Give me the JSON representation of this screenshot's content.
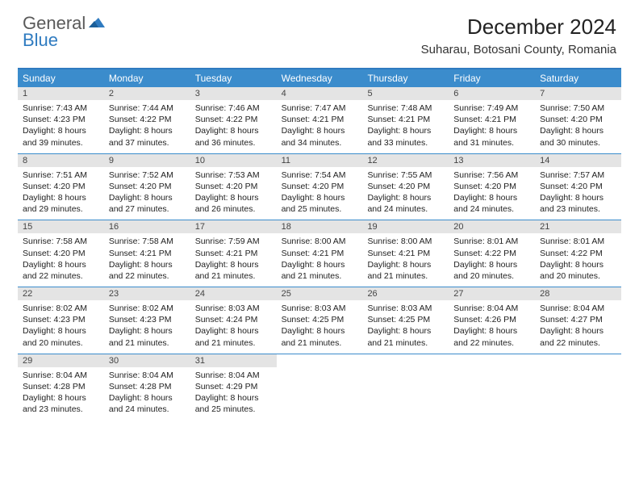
{
  "logo": {
    "line1": "General",
    "line2": "Blue"
  },
  "title": "December 2024",
  "location": "Suharau, Botosani County, Romania",
  "colors": {
    "header_bg": "#3b8ccc",
    "accent_border": "#2f7bc0",
    "daynum_bg": "#e4e4e4",
    "text": "#222222",
    "logo_gray": "#5a5a5a",
    "logo_blue": "#2f7bc0"
  },
  "day_headers": [
    "Sunday",
    "Monday",
    "Tuesday",
    "Wednesday",
    "Thursday",
    "Friday",
    "Saturday"
  ],
  "weeks": [
    [
      {
        "n": "1",
        "sr": "7:43 AM",
        "ss": "4:23 PM",
        "dl": "8 hours and 39 minutes."
      },
      {
        "n": "2",
        "sr": "7:44 AM",
        "ss": "4:22 PM",
        "dl": "8 hours and 37 minutes."
      },
      {
        "n": "3",
        "sr": "7:46 AM",
        "ss": "4:22 PM",
        "dl": "8 hours and 36 minutes."
      },
      {
        "n": "4",
        "sr": "7:47 AM",
        "ss": "4:21 PM",
        "dl": "8 hours and 34 minutes."
      },
      {
        "n": "5",
        "sr": "7:48 AM",
        "ss": "4:21 PM",
        "dl": "8 hours and 33 minutes."
      },
      {
        "n": "6",
        "sr": "7:49 AM",
        "ss": "4:21 PM",
        "dl": "8 hours and 31 minutes."
      },
      {
        "n": "7",
        "sr": "7:50 AM",
        "ss": "4:20 PM",
        "dl": "8 hours and 30 minutes."
      }
    ],
    [
      {
        "n": "8",
        "sr": "7:51 AM",
        "ss": "4:20 PM",
        "dl": "8 hours and 29 minutes."
      },
      {
        "n": "9",
        "sr": "7:52 AM",
        "ss": "4:20 PM",
        "dl": "8 hours and 27 minutes."
      },
      {
        "n": "10",
        "sr": "7:53 AM",
        "ss": "4:20 PM",
        "dl": "8 hours and 26 minutes."
      },
      {
        "n": "11",
        "sr": "7:54 AM",
        "ss": "4:20 PM",
        "dl": "8 hours and 25 minutes."
      },
      {
        "n": "12",
        "sr": "7:55 AM",
        "ss": "4:20 PM",
        "dl": "8 hours and 24 minutes."
      },
      {
        "n": "13",
        "sr": "7:56 AM",
        "ss": "4:20 PM",
        "dl": "8 hours and 24 minutes."
      },
      {
        "n": "14",
        "sr": "7:57 AM",
        "ss": "4:20 PM",
        "dl": "8 hours and 23 minutes."
      }
    ],
    [
      {
        "n": "15",
        "sr": "7:58 AM",
        "ss": "4:20 PM",
        "dl": "8 hours and 22 minutes."
      },
      {
        "n": "16",
        "sr": "7:58 AM",
        "ss": "4:21 PM",
        "dl": "8 hours and 22 minutes."
      },
      {
        "n": "17",
        "sr": "7:59 AM",
        "ss": "4:21 PM",
        "dl": "8 hours and 21 minutes."
      },
      {
        "n": "18",
        "sr": "8:00 AM",
        "ss": "4:21 PM",
        "dl": "8 hours and 21 minutes."
      },
      {
        "n": "19",
        "sr": "8:00 AM",
        "ss": "4:21 PM",
        "dl": "8 hours and 21 minutes."
      },
      {
        "n": "20",
        "sr": "8:01 AM",
        "ss": "4:22 PM",
        "dl": "8 hours and 20 minutes."
      },
      {
        "n": "21",
        "sr": "8:01 AM",
        "ss": "4:22 PM",
        "dl": "8 hours and 20 minutes."
      }
    ],
    [
      {
        "n": "22",
        "sr": "8:02 AM",
        "ss": "4:23 PM",
        "dl": "8 hours and 20 minutes."
      },
      {
        "n": "23",
        "sr": "8:02 AM",
        "ss": "4:23 PM",
        "dl": "8 hours and 21 minutes."
      },
      {
        "n": "24",
        "sr": "8:03 AM",
        "ss": "4:24 PM",
        "dl": "8 hours and 21 minutes."
      },
      {
        "n": "25",
        "sr": "8:03 AM",
        "ss": "4:25 PM",
        "dl": "8 hours and 21 minutes."
      },
      {
        "n": "26",
        "sr": "8:03 AM",
        "ss": "4:25 PM",
        "dl": "8 hours and 21 minutes."
      },
      {
        "n": "27",
        "sr": "8:04 AM",
        "ss": "4:26 PM",
        "dl": "8 hours and 22 minutes."
      },
      {
        "n": "28",
        "sr": "8:04 AM",
        "ss": "4:27 PM",
        "dl": "8 hours and 22 minutes."
      }
    ],
    [
      {
        "n": "29",
        "sr": "8:04 AM",
        "ss": "4:28 PM",
        "dl": "8 hours and 23 minutes."
      },
      {
        "n": "30",
        "sr": "8:04 AM",
        "ss": "4:28 PM",
        "dl": "8 hours and 24 minutes."
      },
      {
        "n": "31",
        "sr": "8:04 AM",
        "ss": "4:29 PM",
        "dl": "8 hours and 25 minutes."
      },
      null,
      null,
      null,
      null
    ]
  ],
  "labels": {
    "sunrise": "Sunrise:",
    "sunset": "Sunset:",
    "daylight": "Daylight:"
  }
}
